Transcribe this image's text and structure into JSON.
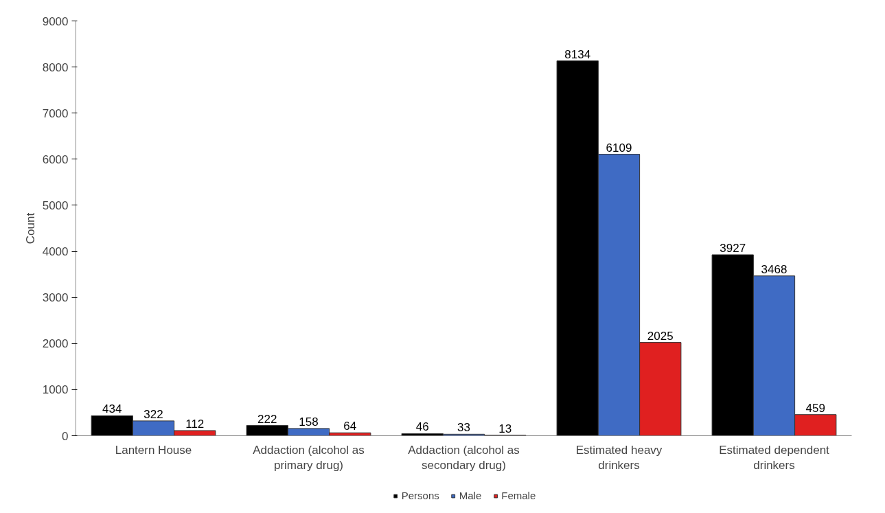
{
  "chart_data": {
    "type": "bar",
    "ylabel": "Count",
    "categories": [
      "Lantern House",
      "Addaction (alcohol as primary drug)",
      "Addaction (alcohol as secondary drug)",
      "Estimated heavy drinkers",
      "Estimated dependent drinkers"
    ],
    "series": [
      {
        "name": "Persons",
        "color": "#000000",
        "values": [
          434,
          222,
          46,
          8134,
          3927
        ]
      },
      {
        "name": "Male",
        "color": "#3f6bc4",
        "values": [
          322,
          158,
          33,
          6109,
          3468
        ]
      },
      {
        "name": "Female",
        "color": "#e02020",
        "values": [
          112,
          64,
          13,
          2025,
          459
        ]
      }
    ],
    "ylim": [
      0,
      9000
    ],
    "yticks": [
      0,
      1000,
      2000,
      3000,
      4000,
      5000,
      6000,
      7000,
      8000,
      9000
    ],
    "grid": false,
    "legend": "bottom",
    "data_labels": true
  }
}
